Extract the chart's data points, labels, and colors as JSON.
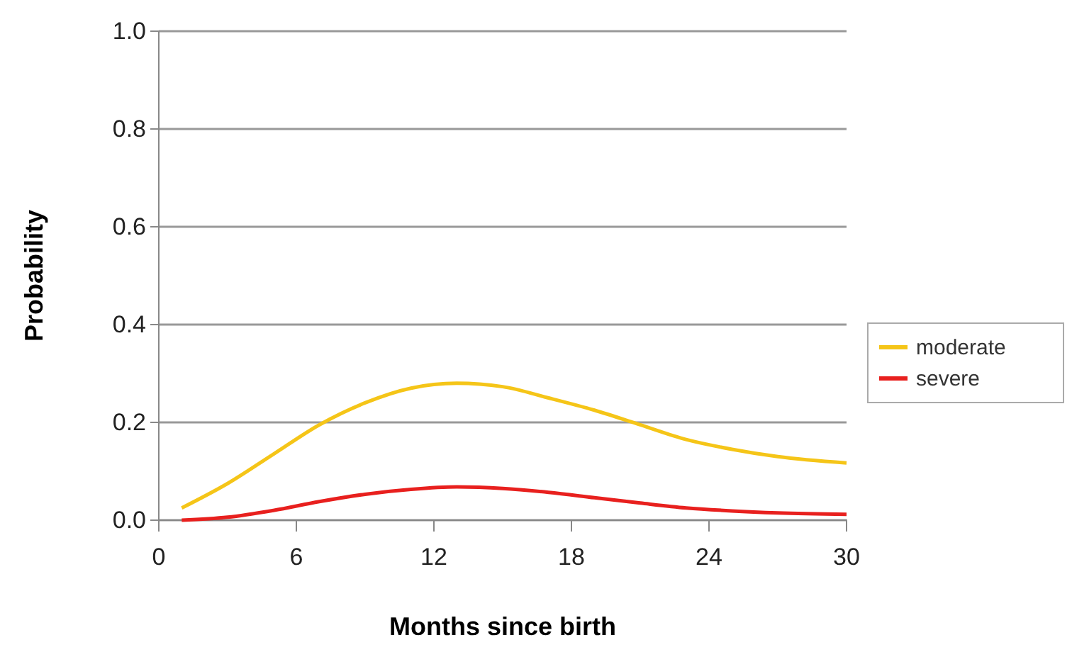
{
  "chart_data": {
    "type": "line",
    "xlabel": "Months since birth",
    "ylabel": "Probability",
    "x": [
      1,
      3,
      5,
      7,
      9,
      11,
      13,
      15,
      17,
      19,
      21,
      23,
      25,
      27,
      30
    ],
    "xlim": [
      0,
      30
    ],
    "xticks": [
      0,
      6,
      12,
      18,
      24,
      30
    ],
    "ylim": [
      0,
      1
    ],
    "yticks": [
      {
        "value": 0,
        "label": "0.0"
      },
      {
        "value": 0.2,
        "label": "0.2"
      },
      {
        "value": 0.4,
        "label": "0.4"
      },
      {
        "value": 0.6,
        "label": "0.6"
      },
      {
        "value": 0.8,
        "label": "0.8"
      },
      {
        "value": 1,
        "label": "1.0"
      }
    ],
    "grid": "y",
    "legend": "right",
    "marker": "none",
    "line_style": "solid",
    "series": [
      {
        "name": "moderate",
        "color": "#f5c518",
        "values": [
          0.025,
          0.075,
          0.135,
          0.195,
          0.24,
          0.27,
          0.28,
          0.273,
          0.25,
          0.225,
          0.195,
          0.165,
          0.145,
          0.13,
          0.117
        ]
      },
      {
        "name": "severe",
        "color": "#e8201e",
        "values": [
          0,
          0.006,
          0.02,
          0.038,
          0.053,
          0.063,
          0.068,
          0.065,
          0.057,
          0.046,
          0.035,
          0.025,
          0.019,
          0.015,
          0.012
        ]
      }
    ]
  }
}
